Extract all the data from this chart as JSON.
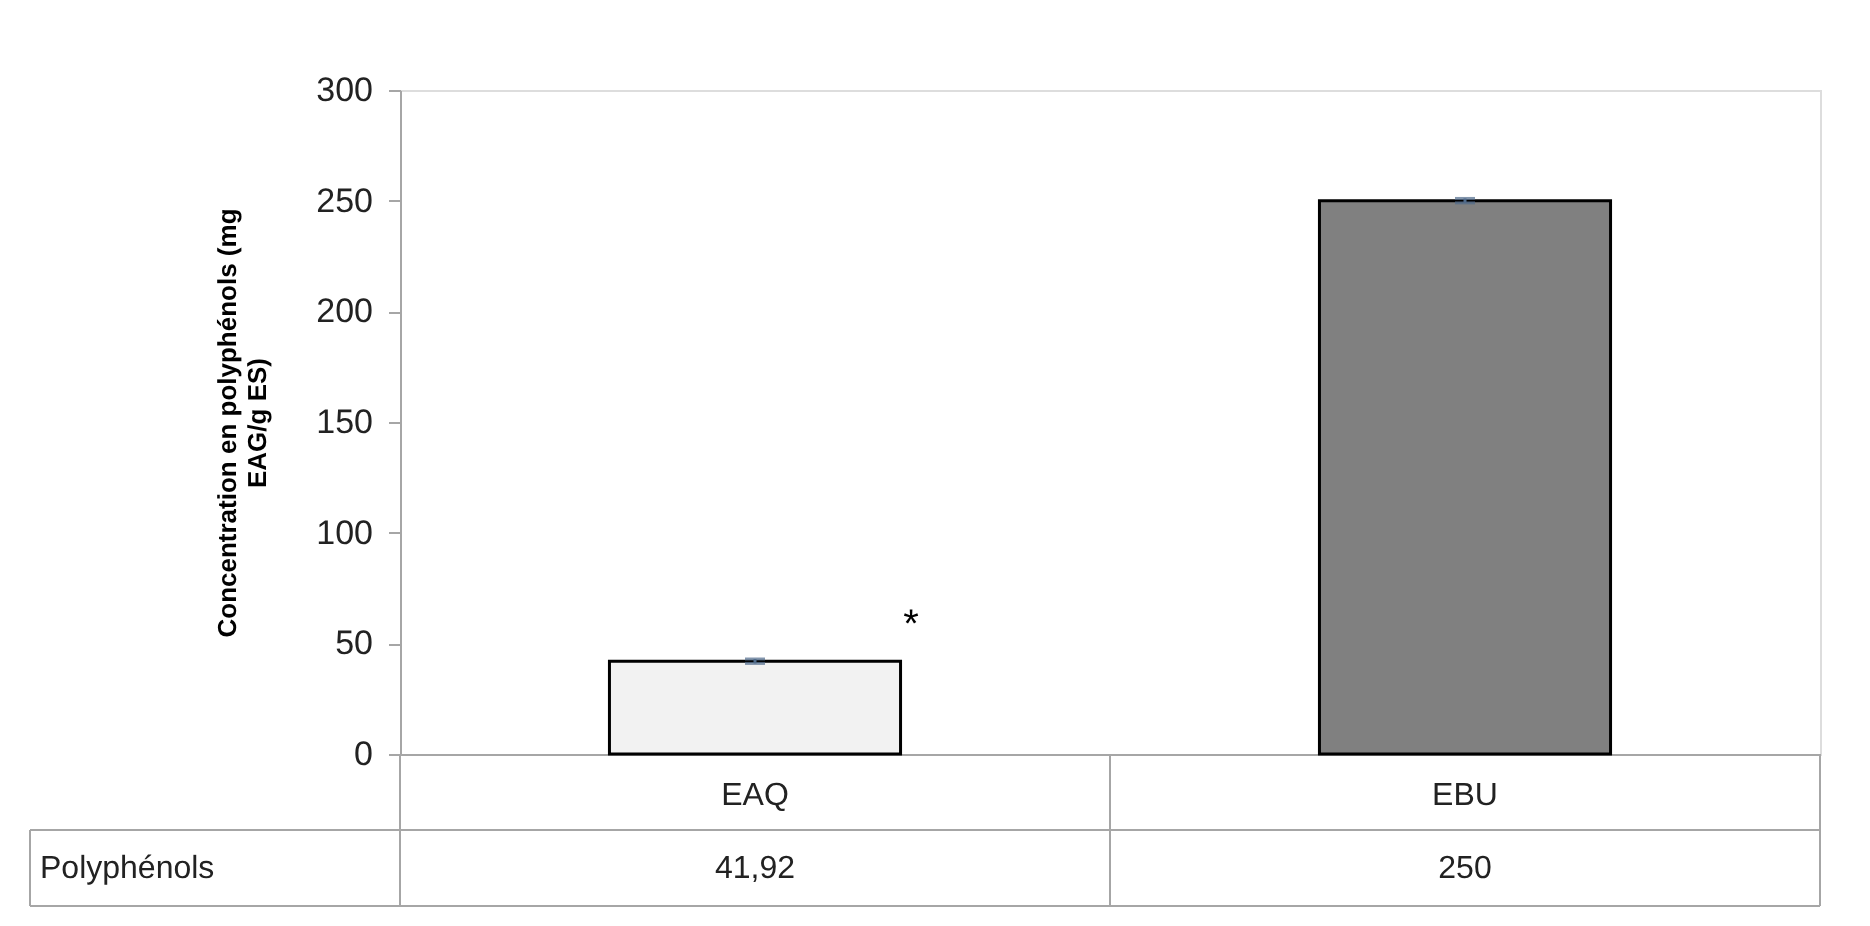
{
  "chart_data": {
    "type": "bar",
    "ylabel": "Concentration en polyphénols (mg EAG/g ES)",
    "categories": [
      "EAQ",
      "EBU"
    ],
    "series": [
      {
        "name": "Polyphénols",
        "colors": [
          "#f2f2f2",
          "#808080"
        ],
        "values": [
          41.92,
          250
        ],
        "errors": [
          1,
          1
        ],
        "value_labels": [
          "41,92",
          "250"
        ]
      }
    ],
    "ylim": [
      0,
      300
    ],
    "yticks": [
      0,
      50,
      100,
      150,
      200,
      250,
      300
    ],
    "grid": false,
    "legend": false,
    "annotations": [
      "*"
    ]
  }
}
